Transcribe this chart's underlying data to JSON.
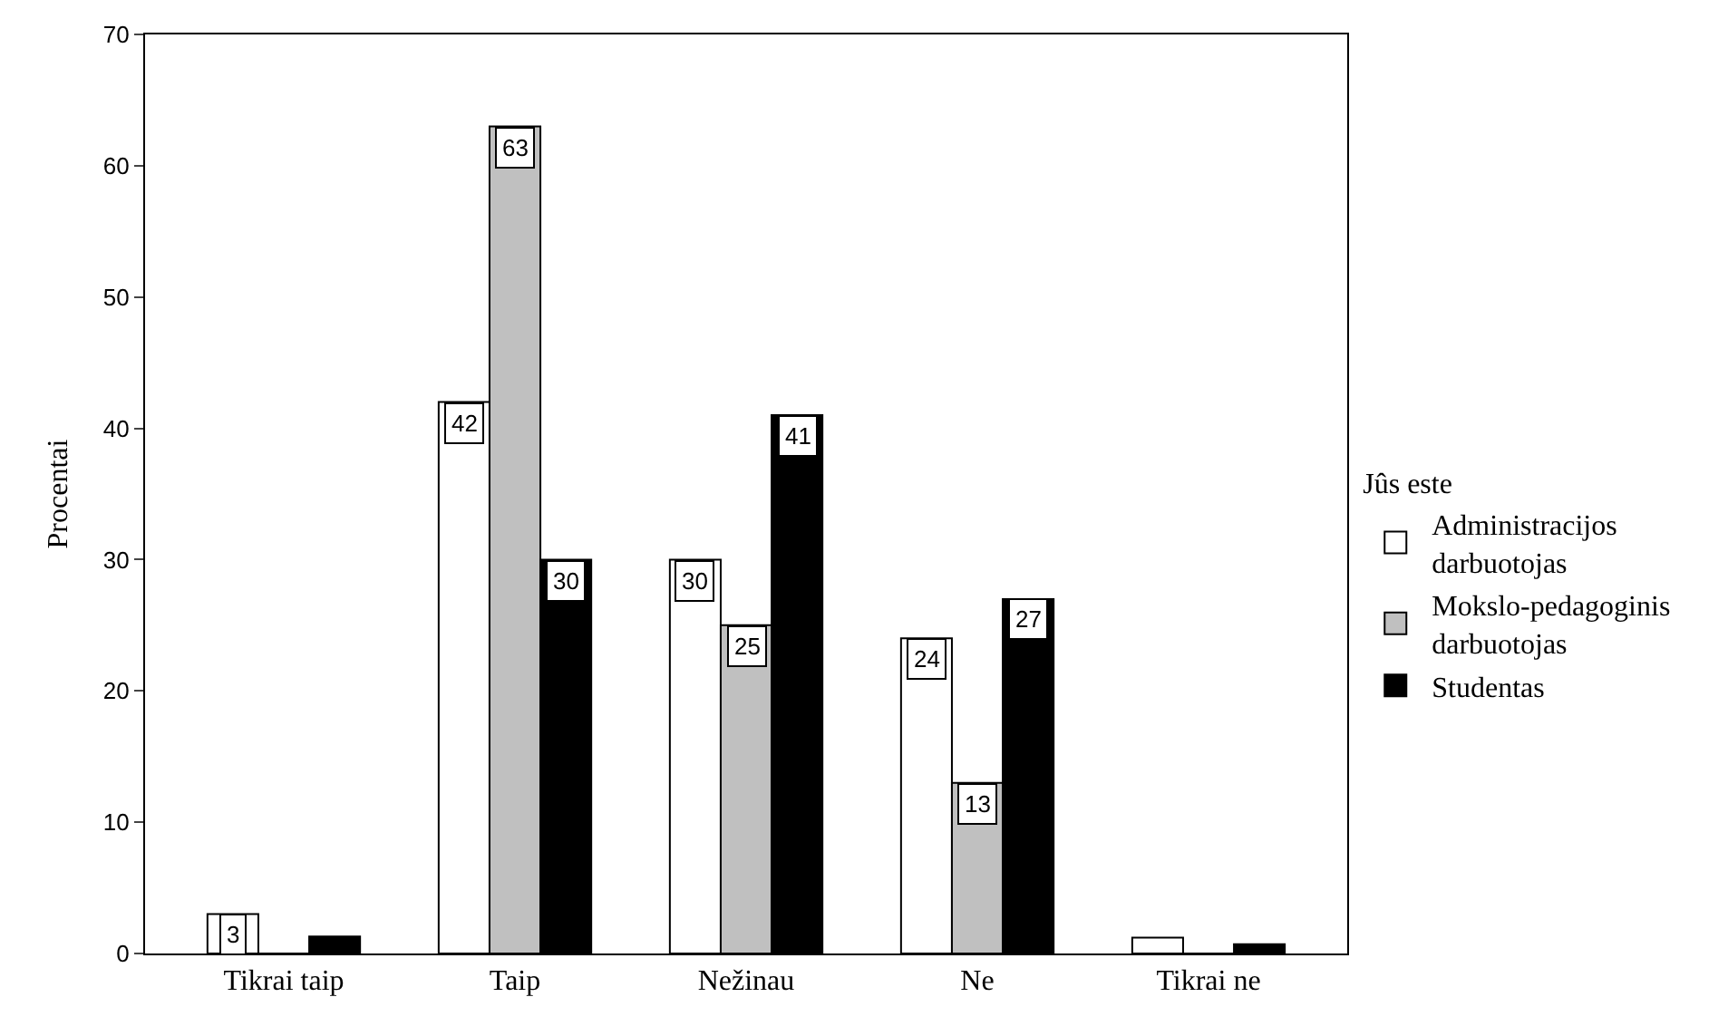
{
  "chart_data": {
    "type": "bar",
    "ylabel": "Procentai",
    "legend_title": "Jûs este",
    "legend": "right",
    "categories": [
      "Tikrai taip",
      "Taip",
      "Nežinau",
      "Ne",
      "Tikrai ne"
    ],
    "series": [
      {
        "name": "Administracijos darbuotojas",
        "color": "#ffffff",
        "values": [
          3,
          42,
          30,
          24,
          1.2
        ],
        "value_labels": [
          "3",
          "42",
          "30",
          "24",
          null
        ]
      },
      {
        "name": "Mokslo-pedagoginis darbuotojas",
        "color": "#c0c0c0",
        "values": [
          0,
          63,
          25,
          13,
          0
        ],
        "value_labels": [
          null,
          "63",
          "25",
          "13",
          null
        ]
      },
      {
        "name": "Studentas",
        "color": "#000000",
        "values": [
          1.3,
          30,
          41,
          27,
          0.7
        ],
        "value_labels": [
          null,
          "30",
          "41",
          "27",
          null
        ]
      }
    ],
    "ylim": [
      0,
      70
    ],
    "yticks": [
      0,
      10,
      20,
      30,
      40,
      50,
      60,
      70
    ]
  }
}
